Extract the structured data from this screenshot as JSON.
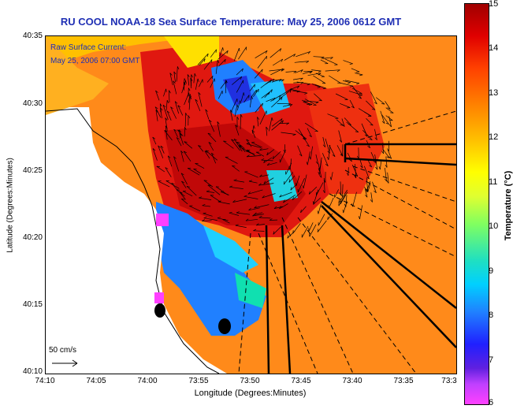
{
  "title": "RU COOL  NOAA-18  Sea Surface Temperature:  May 25, 2006 0612 GMT",
  "overlay": {
    "line1": "Raw Surface Current:",
    "line2": "May 25, 2006 07:00 GMT"
  },
  "axes": {
    "xlabel": "Longitude (Degrees:Minutes)",
    "ylabel": "Latitude (Degrees:Minutes)",
    "xticks": [
      "74:10",
      "74:05",
      "74:00",
      "73:55",
      "73:50",
      "73:45",
      "73:40",
      "73:35",
      "73:3"
    ],
    "yticks": [
      "40:35",
      "40:30",
      "40:25",
      "40:20",
      "40:15",
      "40:10"
    ]
  },
  "colorbar": {
    "label": "Temperature (°C)",
    "ticks": [
      "15",
      "14",
      "13",
      "12",
      "11",
      "10",
      "9",
      "8",
      "7",
      "6"
    ],
    "min": 6,
    "max": 15
  },
  "scale": {
    "label": "50 cm/s"
  },
  "colors": {
    "title": "#1f2fb4",
    "overlay_text": "#1f2fb4"
  }
}
